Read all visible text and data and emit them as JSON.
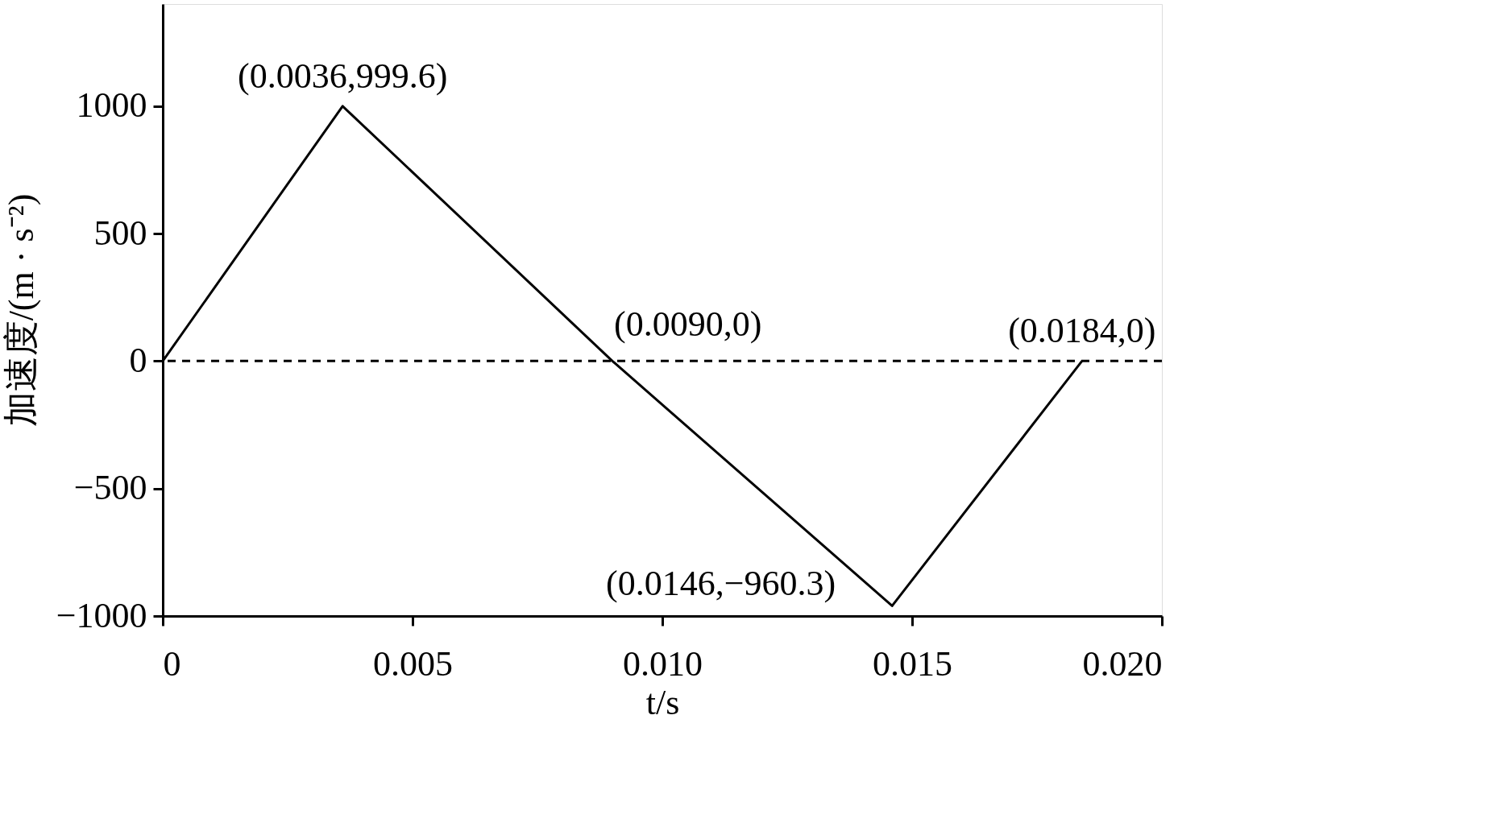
{
  "chart_data": {
    "type": "line",
    "xlabel": "t/s",
    "ylabel": "加速度/(m · s⁻²)",
    "x": [
      0,
      0.0036,
      0.009,
      0.0146,
      0.0184
    ],
    "series": [
      {
        "color": "#000000",
        "values": [
          0,
          999.6,
          0,
          -960.3,
          0
        ]
      }
    ],
    "xlim": [
      0,
      0.02
    ],
    "xticks": [
      0,
      0.005,
      {
        "value": 0.01,
        "label": "0.010"
      },
      0.015,
      {
        "value": 0.02,
        "label": "0.020"
      }
    ],
    "ylim": [
      -1000,
      1400
    ],
    "yticks": [
      {
        "value": -1000,
        "label": "−1000"
      },
      {
        "value": -500,
        "label": "−500"
      },
      0,
      500,
      1000
    ],
    "ref_lines": [
      {
        "axis": "y",
        "value": 0,
        "color": "#000000",
        "line_style": "dashed"
      }
    ],
    "annotations": [
      {
        "text": "(0.0036,999.6)",
        "x": 0.0036,
        "y": 999.6
      },
      {
        "text": "(0.0090,0)",
        "x": 0.009,
        "y": 0
      },
      {
        "text": "(0.0146,−960.3)",
        "x": 0.0146,
        "y": -960.3
      },
      {
        "text": "(0.0184,0)",
        "x": 0.0184,
        "y": 0
      }
    ],
    "grid": false,
    "marker": "none",
    "line_style": "solid"
  }
}
